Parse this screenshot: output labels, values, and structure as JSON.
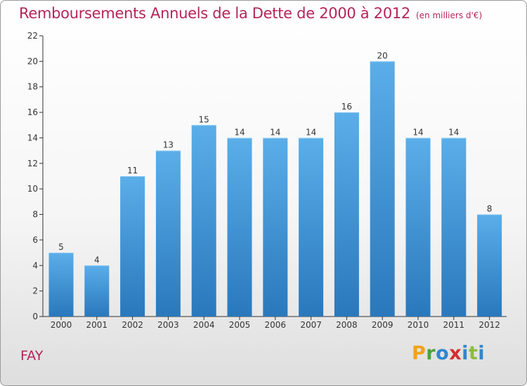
{
  "header": {
    "title": "Remboursements Annuels de la Dette de 2000 à 2012",
    "subtitle": "(en milliers d'€)"
  },
  "footer": {
    "commune": "FAY",
    "logo_text": "Proxiti"
  },
  "colors": {
    "bar_top": "#5aaee9",
    "bar_bottom": "#2a78bc",
    "title": "#b5245a",
    "axis": "#333333"
  },
  "chart_data": {
    "type": "bar",
    "categories": [
      "2000",
      "2001",
      "2002",
      "2003",
      "2004",
      "2005",
      "2006",
      "2007",
      "2008",
      "2009",
      "2010",
      "2011",
      "2012"
    ],
    "values": [
      5,
      4,
      11,
      13,
      15,
      14,
      14,
      14,
      16,
      20,
      14,
      14,
      8
    ],
    "ylim": [
      0,
      22
    ],
    "yticks": [
      0,
      2,
      4,
      6,
      8,
      10,
      12,
      14,
      16,
      18,
      20,
      22
    ],
    "grid": false,
    "legend": "none"
  }
}
